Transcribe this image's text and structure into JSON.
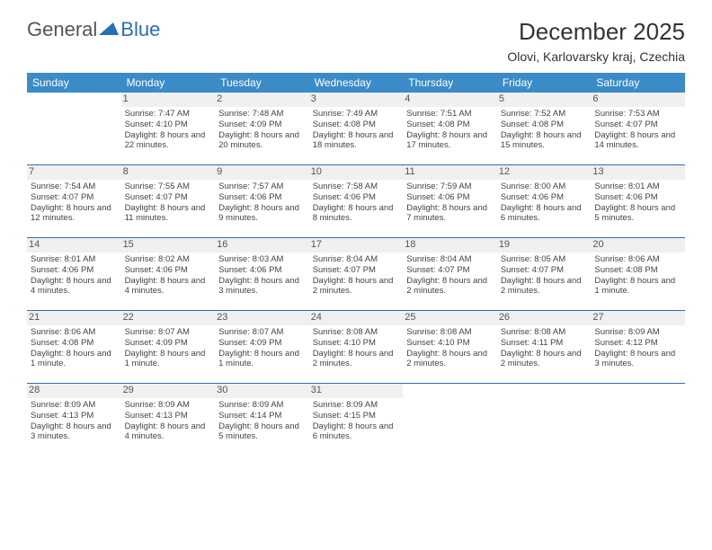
{
  "brand": {
    "text1": "General",
    "text2": "Blue",
    "icon_color": "#2a6fb5"
  },
  "title": "December 2025",
  "location": "Olovi, Karlovarsky kraj, Czechia",
  "colors": {
    "header_bg": "#3b8bc9",
    "header_text": "#ffffff",
    "border": "#2a6fb5",
    "daynum_bg": "#f0f0f0",
    "text": "#444444"
  },
  "weekdays": [
    "Sunday",
    "Monday",
    "Tuesday",
    "Wednesday",
    "Thursday",
    "Friday",
    "Saturday"
  ],
  "weeks": [
    [
      {
        "n": "",
        "sr": "",
        "ss": "",
        "dl": ""
      },
      {
        "n": "1",
        "sr": "Sunrise: 7:47 AM",
        "ss": "Sunset: 4:10 PM",
        "dl": "Daylight: 8 hours and 22 minutes."
      },
      {
        "n": "2",
        "sr": "Sunrise: 7:48 AM",
        "ss": "Sunset: 4:09 PM",
        "dl": "Daylight: 8 hours and 20 minutes."
      },
      {
        "n": "3",
        "sr": "Sunrise: 7:49 AM",
        "ss": "Sunset: 4:08 PM",
        "dl": "Daylight: 8 hours and 18 minutes."
      },
      {
        "n": "4",
        "sr": "Sunrise: 7:51 AM",
        "ss": "Sunset: 4:08 PM",
        "dl": "Daylight: 8 hours and 17 minutes."
      },
      {
        "n": "5",
        "sr": "Sunrise: 7:52 AM",
        "ss": "Sunset: 4:08 PM",
        "dl": "Daylight: 8 hours and 15 minutes."
      },
      {
        "n": "6",
        "sr": "Sunrise: 7:53 AM",
        "ss": "Sunset: 4:07 PM",
        "dl": "Daylight: 8 hours and 14 minutes."
      }
    ],
    [
      {
        "n": "7",
        "sr": "Sunrise: 7:54 AM",
        "ss": "Sunset: 4:07 PM",
        "dl": "Daylight: 8 hours and 12 minutes."
      },
      {
        "n": "8",
        "sr": "Sunrise: 7:55 AM",
        "ss": "Sunset: 4:07 PM",
        "dl": "Daylight: 8 hours and 11 minutes."
      },
      {
        "n": "9",
        "sr": "Sunrise: 7:57 AM",
        "ss": "Sunset: 4:06 PM",
        "dl": "Daylight: 8 hours and 9 minutes."
      },
      {
        "n": "10",
        "sr": "Sunrise: 7:58 AM",
        "ss": "Sunset: 4:06 PM",
        "dl": "Daylight: 8 hours and 8 minutes."
      },
      {
        "n": "11",
        "sr": "Sunrise: 7:59 AM",
        "ss": "Sunset: 4:06 PM",
        "dl": "Daylight: 8 hours and 7 minutes."
      },
      {
        "n": "12",
        "sr": "Sunrise: 8:00 AM",
        "ss": "Sunset: 4:06 PM",
        "dl": "Daylight: 8 hours and 6 minutes."
      },
      {
        "n": "13",
        "sr": "Sunrise: 8:01 AM",
        "ss": "Sunset: 4:06 PM",
        "dl": "Daylight: 8 hours and 5 minutes."
      }
    ],
    [
      {
        "n": "14",
        "sr": "Sunrise: 8:01 AM",
        "ss": "Sunset: 4:06 PM",
        "dl": "Daylight: 8 hours and 4 minutes."
      },
      {
        "n": "15",
        "sr": "Sunrise: 8:02 AM",
        "ss": "Sunset: 4:06 PM",
        "dl": "Daylight: 8 hours and 4 minutes."
      },
      {
        "n": "16",
        "sr": "Sunrise: 8:03 AM",
        "ss": "Sunset: 4:06 PM",
        "dl": "Daylight: 8 hours and 3 minutes."
      },
      {
        "n": "17",
        "sr": "Sunrise: 8:04 AM",
        "ss": "Sunset: 4:07 PM",
        "dl": "Daylight: 8 hours and 2 minutes."
      },
      {
        "n": "18",
        "sr": "Sunrise: 8:04 AM",
        "ss": "Sunset: 4:07 PM",
        "dl": "Daylight: 8 hours and 2 minutes."
      },
      {
        "n": "19",
        "sr": "Sunrise: 8:05 AM",
        "ss": "Sunset: 4:07 PM",
        "dl": "Daylight: 8 hours and 2 minutes."
      },
      {
        "n": "20",
        "sr": "Sunrise: 8:06 AM",
        "ss": "Sunset: 4:08 PM",
        "dl": "Daylight: 8 hours and 1 minute."
      }
    ],
    [
      {
        "n": "21",
        "sr": "Sunrise: 8:06 AM",
        "ss": "Sunset: 4:08 PM",
        "dl": "Daylight: 8 hours and 1 minute."
      },
      {
        "n": "22",
        "sr": "Sunrise: 8:07 AM",
        "ss": "Sunset: 4:09 PM",
        "dl": "Daylight: 8 hours and 1 minute."
      },
      {
        "n": "23",
        "sr": "Sunrise: 8:07 AM",
        "ss": "Sunset: 4:09 PM",
        "dl": "Daylight: 8 hours and 1 minute."
      },
      {
        "n": "24",
        "sr": "Sunrise: 8:08 AM",
        "ss": "Sunset: 4:10 PM",
        "dl": "Daylight: 8 hours and 2 minutes."
      },
      {
        "n": "25",
        "sr": "Sunrise: 8:08 AM",
        "ss": "Sunset: 4:10 PM",
        "dl": "Daylight: 8 hours and 2 minutes."
      },
      {
        "n": "26",
        "sr": "Sunrise: 8:08 AM",
        "ss": "Sunset: 4:11 PM",
        "dl": "Daylight: 8 hours and 2 minutes."
      },
      {
        "n": "27",
        "sr": "Sunrise: 8:09 AM",
        "ss": "Sunset: 4:12 PM",
        "dl": "Daylight: 8 hours and 3 minutes."
      }
    ],
    [
      {
        "n": "28",
        "sr": "Sunrise: 8:09 AM",
        "ss": "Sunset: 4:13 PM",
        "dl": "Daylight: 8 hours and 3 minutes."
      },
      {
        "n": "29",
        "sr": "Sunrise: 8:09 AM",
        "ss": "Sunset: 4:13 PM",
        "dl": "Daylight: 8 hours and 4 minutes."
      },
      {
        "n": "30",
        "sr": "Sunrise: 8:09 AM",
        "ss": "Sunset: 4:14 PM",
        "dl": "Daylight: 8 hours and 5 minutes."
      },
      {
        "n": "31",
        "sr": "Sunrise: 8:09 AM",
        "ss": "Sunset: 4:15 PM",
        "dl": "Daylight: 8 hours and 6 minutes."
      },
      {
        "n": "",
        "sr": "",
        "ss": "",
        "dl": ""
      },
      {
        "n": "",
        "sr": "",
        "ss": "",
        "dl": ""
      },
      {
        "n": "",
        "sr": "",
        "ss": "",
        "dl": ""
      }
    ]
  ]
}
